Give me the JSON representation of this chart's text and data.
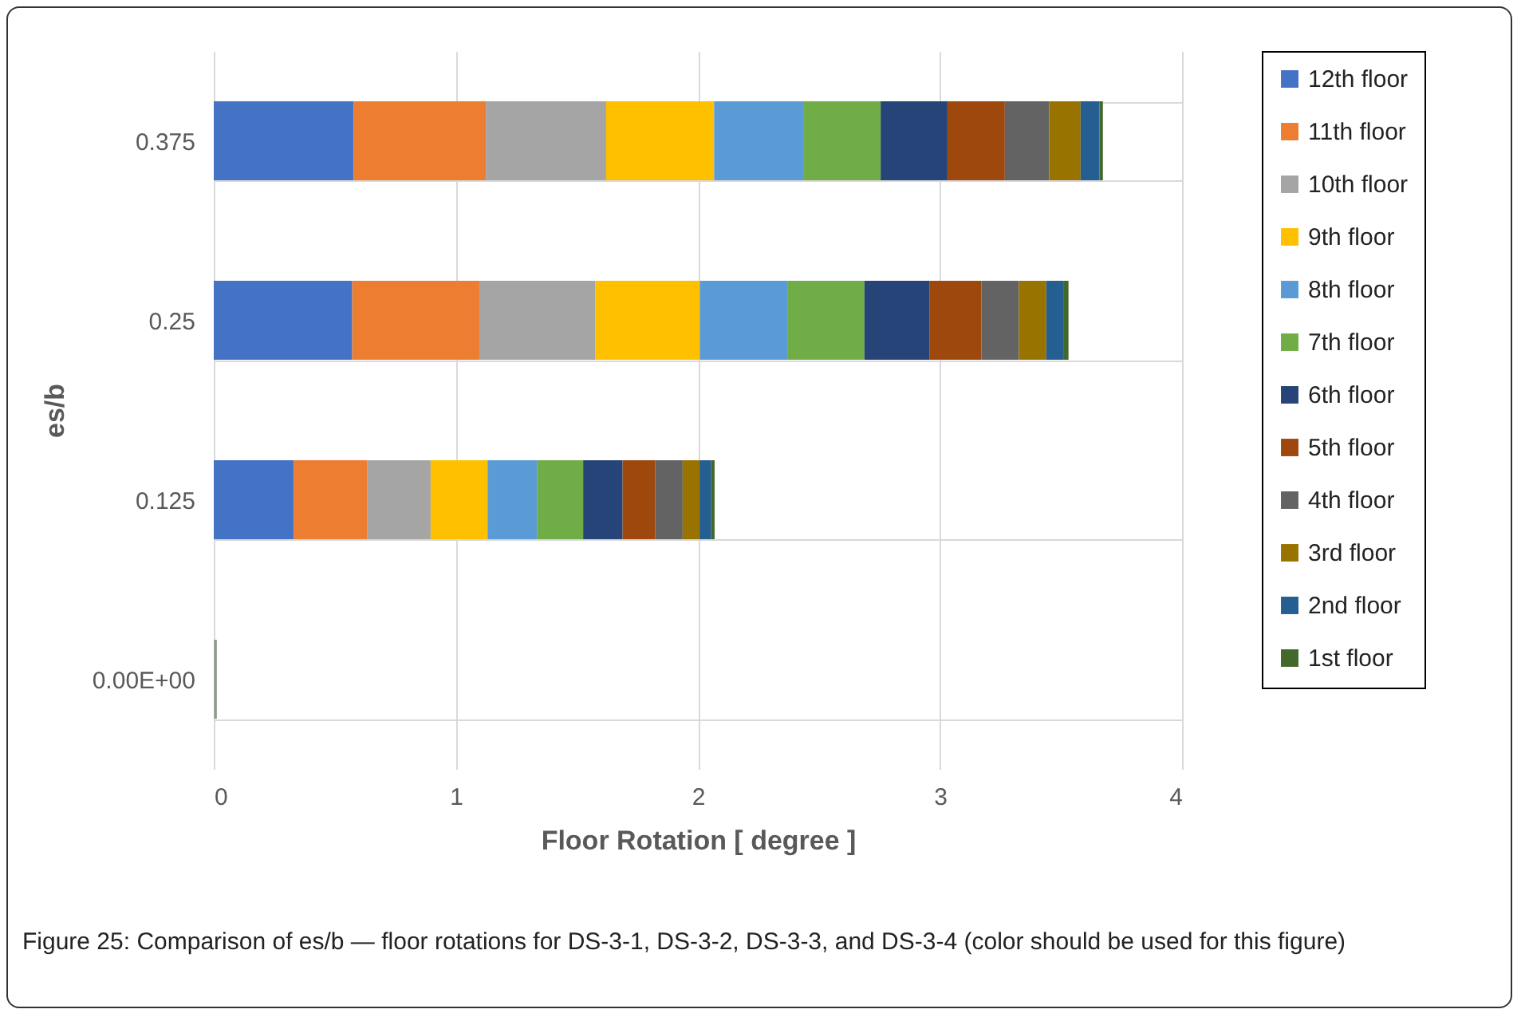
{
  "chart_data": {
    "type": "bar",
    "orientation": "horizontal",
    "stacked": true,
    "categories": [
      "0.375",
      "0.25",
      "0.125",
      "0.00E+00"
    ],
    "xlabel": "Floor Rotation [ degree ]",
    "ylabel": "es/b",
    "xlim": [
      0,
      4
    ],
    "xticks": [
      0,
      1,
      2,
      3,
      4
    ],
    "grid": true,
    "legend": "right",
    "annotations": [
      "Figure 25: Comparison of es/b — floor rotations for DS-3-1, DS-3-2, DS-3-3, and DS-3-4 (color should be used for this figure)"
    ],
    "series": [
      {
        "name": "12th floor",
        "color": "#4472c4",
        "values": [
          0.578,
          0.572,
          0.33,
          0.001
        ]
      },
      {
        "name": "11th floor",
        "color": "#ed7d31",
        "values": [
          0.546,
          0.525,
          0.305,
          0.001
        ]
      },
      {
        "name": "10th floor",
        "color": "#a5a5a5",
        "values": [
          0.497,
          0.48,
          0.261,
          0.001
        ]
      },
      {
        "name": "9th floor",
        "color": "#ffc000",
        "values": [
          0.446,
          0.431,
          0.235,
          0.001
        ]
      },
      {
        "name": "8th floor",
        "color": "#5b9bd5",
        "values": [
          0.371,
          0.364,
          0.204,
          0.001
        ]
      },
      {
        "name": "7th floor",
        "color": "#70ad47",
        "values": [
          0.317,
          0.316,
          0.191,
          0.001
        ]
      },
      {
        "name": "6th floor",
        "color": "#264478",
        "values": [
          0.276,
          0.268,
          0.163,
          0.001
        ]
      },
      {
        "name": "5th floor",
        "color": "#9e480e",
        "values": [
          0.237,
          0.215,
          0.134,
          0.001
        ]
      },
      {
        "name": "4th floor",
        "color": "#636363",
        "values": [
          0.183,
          0.155,
          0.114,
          0.001
        ]
      },
      {
        "name": "3rd floor",
        "color": "#997300",
        "values": [
          0.13,
          0.113,
          0.07,
          0.001
        ]
      },
      {
        "name": "2nd floor",
        "color": "#255e91",
        "values": [
          0.078,
          0.073,
          0.048,
          0.001
        ]
      },
      {
        "name": "1st floor",
        "color": "#43682b",
        "values": [
          0.014,
          0.019,
          0.014,
          0.001
        ]
      }
    ]
  }
}
